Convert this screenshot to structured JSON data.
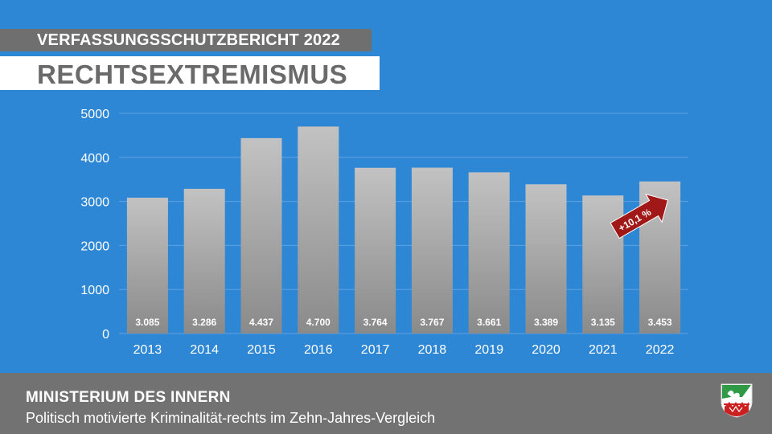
{
  "header": {
    "kicker": "VERFASSUNGSSCHUTZBERICHT 2022",
    "headline": "RECHTSEXTREMISMUS"
  },
  "footer": {
    "ministry": "MINISTERIUM DES INNERN",
    "subtitle": "Politisch motivierte Kriminalität-rechts im Zehn-Jahres-Vergleich"
  },
  "emblem": {
    "icon": "nrw-coat-of-arms-icon"
  },
  "colors": {
    "background": "#2e87d5",
    "bar_top": "#c2c2c2",
    "bar_bottom": "#888888",
    "arrow": "#a01818",
    "footer": "#727272"
  },
  "chart_data": {
    "type": "bar",
    "categories": [
      "2013",
      "2014",
      "2015",
      "2016",
      "2017",
      "2018",
      "2019",
      "2020",
      "2021",
      "2022"
    ],
    "values": [
      3085,
      3286,
      4437,
      4700,
      3764,
      3767,
      3661,
      3389,
      3135,
      3453
    ],
    "value_labels": [
      "3.085",
      "3.286",
      "4.437",
      "4.700",
      "3.764",
      "3.767",
      "3.661",
      "3.389",
      "3.135",
      "3.453"
    ],
    "yticks": [
      0,
      1000,
      2000,
      3000,
      4000,
      5000
    ],
    "ylim": [
      0,
      5000
    ],
    "grid": true,
    "title": "",
    "xlabel": "",
    "ylabel": "",
    "annotation": {
      "text": "+10,1 %",
      "category": "2022"
    }
  }
}
